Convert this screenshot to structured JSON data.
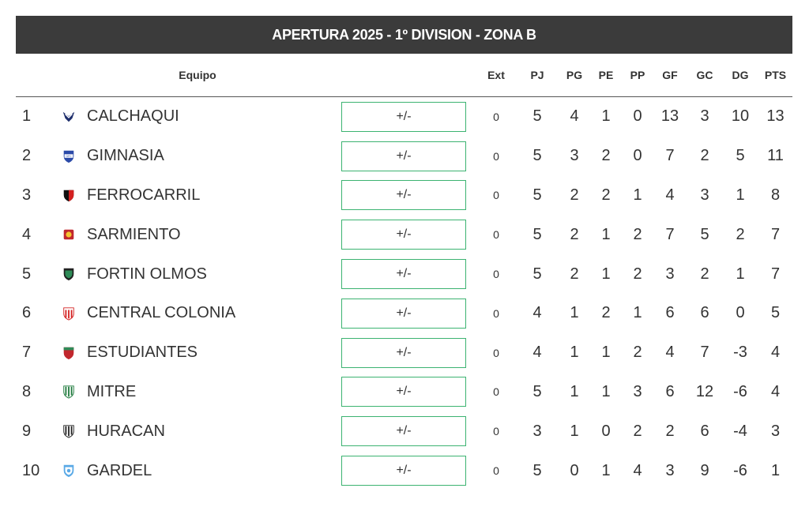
{
  "title": "APERTURA 2025 - 1º DIVISION - ZONA B",
  "headers": {
    "team": "Equipo",
    "ext": "Ext",
    "pj": "PJ",
    "pg": "PG",
    "pe": "PE",
    "pp": "PP",
    "gf": "GF",
    "gc": "GC",
    "dg": "DG",
    "pts": "PTS"
  },
  "plusminus_label": "+/-",
  "rows": [
    {
      "pos": "1",
      "team": "CALCHAQUI",
      "crest": "calchaqui-crest",
      "ext": "0",
      "pj": "5",
      "pg": "4",
      "pe": "1",
      "pp": "0",
      "gf": "13",
      "gc": "3",
      "dg": "10",
      "pts": "13"
    },
    {
      "pos": "2",
      "team": "GIMNASIA",
      "crest": "gimnasia-crest",
      "ext": "0",
      "pj": "5",
      "pg": "3",
      "pe": "2",
      "pp": "0",
      "gf": "7",
      "gc": "2",
      "dg": "5",
      "pts": "11"
    },
    {
      "pos": "3",
      "team": "FERROCARRIL",
      "crest": "ferrocarril-crest",
      "ext": "0",
      "pj": "5",
      "pg": "2",
      "pe": "2",
      "pp": "1",
      "gf": "4",
      "gc": "3",
      "dg": "1",
      "pts": "8"
    },
    {
      "pos": "4",
      "team": "SARMIENTO",
      "crest": "sarmiento-crest",
      "ext": "0",
      "pj": "5",
      "pg": "2",
      "pe": "1",
      "pp": "2",
      "gf": "7",
      "gc": "5",
      "dg": "2",
      "pts": "7"
    },
    {
      "pos": "5",
      "team": "FORTIN OLMOS",
      "crest": "fortin-olmos-crest",
      "ext": "0",
      "pj": "5",
      "pg": "2",
      "pe": "1",
      "pp": "2",
      "gf": "3",
      "gc": "2",
      "dg": "1",
      "pts": "7"
    },
    {
      "pos": "6",
      "team": "CENTRAL COLONIA",
      "crest": "central-colonia-crest",
      "ext": "0",
      "pj": "4",
      "pg": "1",
      "pe": "2",
      "pp": "1",
      "gf": "6",
      "gc": "6",
      "dg": "0",
      "pts": "5"
    },
    {
      "pos": "7",
      "team": "ESTUDIANTES",
      "crest": "estudiantes-crest",
      "ext": "0",
      "pj": "4",
      "pg": "1",
      "pe": "1",
      "pp": "2",
      "gf": "4",
      "gc": "7",
      "dg": "-3",
      "pts": "4"
    },
    {
      "pos": "8",
      "team": "MITRE",
      "crest": "mitre-crest",
      "ext": "0",
      "pj": "5",
      "pg": "1",
      "pe": "1",
      "pp": "3",
      "gf": "6",
      "gc": "12",
      "dg": "-6",
      "pts": "4"
    },
    {
      "pos": "9",
      "team": "HURACAN",
      "crest": "huracan-crest",
      "ext": "0",
      "pj": "3",
      "pg": "1",
      "pe": "0",
      "pp": "2",
      "gf": "2",
      "gc": "6",
      "dg": "-4",
      "pts": "3"
    },
    {
      "pos": "10",
      "team": "GARDEL",
      "crest": "gardel-crest",
      "ext": "0",
      "pj": "5",
      "pg": "0",
      "pe": "1",
      "pp": "4",
      "gf": "3",
      "gc": "9",
      "dg": "-6",
      "pts": "1"
    }
  ],
  "colors": {
    "header_bg": "#3b3b3b",
    "button_border": "#3cb371"
  }
}
